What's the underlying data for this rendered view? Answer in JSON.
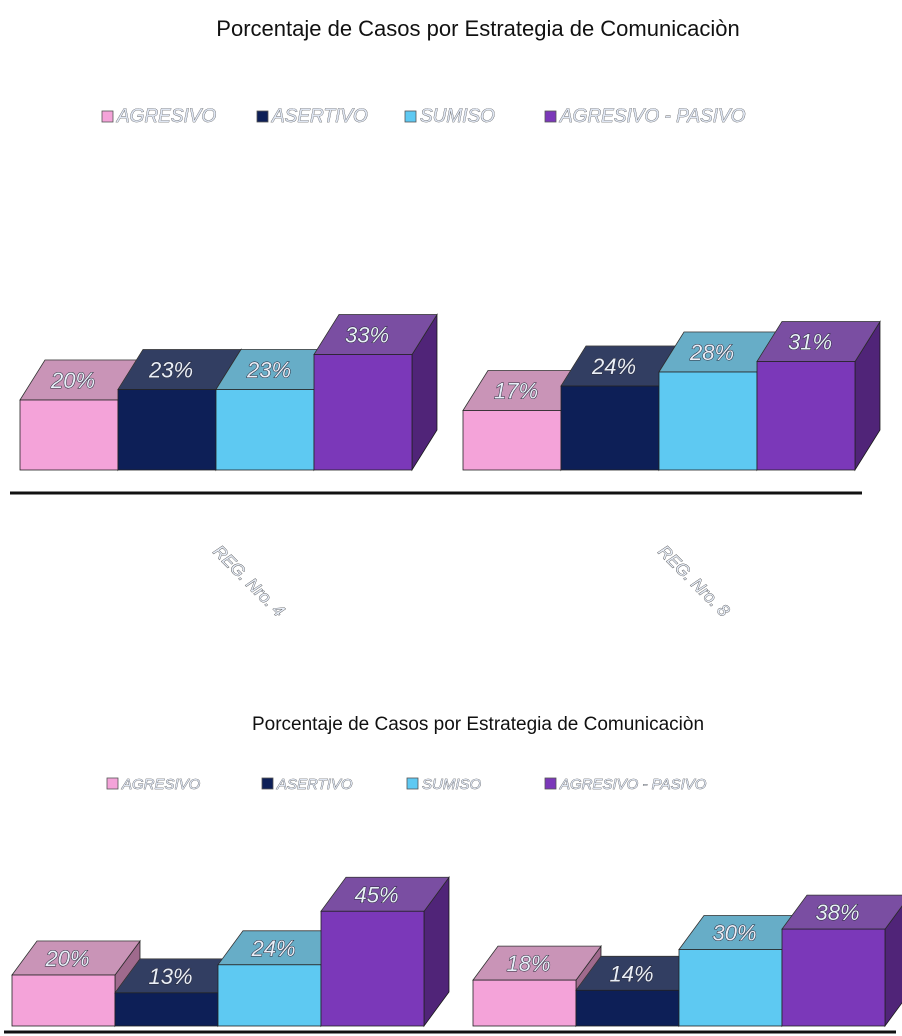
{
  "chart_data": [
    {
      "type": "bar3d",
      "title": "Porcentaje de Casos por Estrategia de Comunicaciòn",
      "categories": [
        "REG. Nro. 4",
        "REG. Nro. 8"
      ],
      "series": [
        {
          "name": "AGRESIVO",
          "color": "#f4a3d9",
          "values": [
            20,
            17
          ],
          "value_labels": [
            "20%",
            "17%"
          ]
        },
        {
          "name": "ASERTIVO",
          "color": "#0d1f57",
          "values": [
            23,
            24
          ],
          "value_labels": [
            "23%",
            "24%"
          ]
        },
        {
          "name": "SUMISO",
          "color": "#5ec9f2",
          "values": [
            23,
            28
          ],
          "value_labels": [
            "23%",
            "28%"
          ]
        },
        {
          "name": "AGRESIVO - PASIVO",
          "color": "#7b38b9",
          "values": [
            33,
            31
          ],
          "value_labels": [
            "33%",
            "31%"
          ]
        }
      ],
      "legend": "top"
    },
    {
      "type": "bar3d",
      "title": "Porcentaje de Casos por Estrategia de Comunicaciòn",
      "categories": [
        null,
        null
      ],
      "series": [
        {
          "name": "AGRESIVO",
          "color": "#f4a3d9",
          "values": [
            20,
            18
          ],
          "value_labels": [
            "20%",
            "18%"
          ]
        },
        {
          "name": "ASERTIVO",
          "color": "#0d1f57",
          "values": [
            13,
            14
          ],
          "value_labels": [
            "13%",
            "14%"
          ]
        },
        {
          "name": "SUMISO",
          "color": "#5ec9f2",
          "values": [
            24,
            30
          ],
          "value_labels": [
            "24%",
            "30%"
          ]
        },
        {
          "name": "AGRESIVO - PASIVO",
          "color": "#7b38b9",
          "values": [
            45,
            38
          ],
          "value_labels": [
            "45%",
            "38%"
          ]
        }
      ],
      "legend": "top"
    }
  ]
}
